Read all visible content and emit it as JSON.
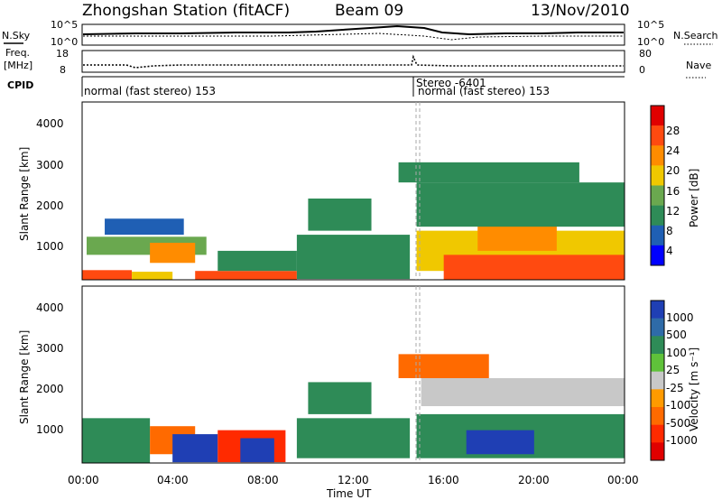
{
  "header": {
    "station": "Zhongshan Station (fitACF)",
    "beam": "Beam 09",
    "date": "13/Nov/2010"
  },
  "strip": {
    "nsky_label": "N.Sky",
    "nsky_ticks": [
      "10^5",
      "10^0"
    ],
    "nsearch_label": "N.Search",
    "nsearch_ticks": [
      "10^5",
      "10^0"
    ],
    "freq_label_1": "Freq.",
    "freq_label_2": "[MHz]",
    "freq_ticks": [
      "18",
      "8"
    ],
    "nave_label": "Nave",
    "nave_ticks": [
      "80",
      "0"
    ],
    "cpid_label": "CPID",
    "cpid_segments": [
      {
        "label": "normal (fast stereo) 153",
        "start_hour": 0.0
      },
      {
        "label": "Stereo -6401",
        "start_hour": 14.8
      },
      {
        "label": "normal (fast stereo) 153",
        "start_hour": 14.8
      }
    ]
  },
  "axes": {
    "ylabel": "Slant Range [km]",
    "xlabel": "Time UT",
    "yticks": [
      "4000",
      "3000",
      "2000",
      "1000"
    ],
    "xticks": [
      "00:00",
      "04:00",
      "08:00",
      "12:00",
      "16:00",
      "20:00",
      "00:00"
    ]
  },
  "power_scale": {
    "title": "Power [dB]",
    "labels": [
      "28",
      "24",
      "20",
      "16",
      "12",
      "8",
      "4"
    ],
    "colors": [
      "#e00000",
      "#ff4a10",
      "#ff8c00",
      "#f0c800",
      "#6aa84f",
      "#2e8b57",
      "#1f5fb4",
      "#0000ff"
    ]
  },
  "velocity_scale": {
    "title": "Velocity [m s⁻¹]",
    "labels": [
      "1000",
      "500",
      "100",
      "25",
      "-25",
      "-100",
      "-500",
      "-1000"
    ],
    "colors": [
      "#1f3fb4",
      "#2e6ba8",
      "#2e8b57",
      "#5fc23a",
      "#c8c8c8",
      "#ff9a00",
      "#ff6a00",
      "#ff2a00",
      "#e00000"
    ]
  },
  "chart_data": [
    {
      "type": "heatmap",
      "title": "Power [dB]",
      "xlabel": "Time UT",
      "ylabel": "Slant Range [km]",
      "xlim": [
        0,
        24
      ],
      "ylim": [
        180,
        4600
      ],
      "scale_range": [
        0,
        32
      ],
      "regions": [
        {
          "t0": 0.0,
          "t1": 2.2,
          "r0": 180,
          "r1": 420,
          "level": 26
        },
        {
          "t0": 2.2,
          "t1": 4.0,
          "r0": 180,
          "r1": 380,
          "level": 20
        },
        {
          "t0": 0.2,
          "t1": 5.5,
          "r0": 800,
          "r1": 1250,
          "level": 16
        },
        {
          "t0": 3.0,
          "t1": 5.0,
          "r0": 600,
          "r1": 1100,
          "level": 24
        },
        {
          "t0": 5.0,
          "t1": 9.5,
          "r0": 180,
          "r1": 400,
          "level": 26
        },
        {
          "t0": 6.0,
          "t1": 9.5,
          "r0": 400,
          "r1": 900,
          "level": 10
        },
        {
          "t0": 1.0,
          "t1": 4.5,
          "r0": 1300,
          "r1": 1700,
          "level": 6
        },
        {
          "t0": 10.0,
          "t1": 12.8,
          "r0": 1400,
          "r1": 2200,
          "level": 7
        },
        {
          "t0": 9.5,
          "t1": 14.5,
          "r0": 200,
          "r1": 1300,
          "level": 7
        },
        {
          "t0": 14.8,
          "t1": 24.0,
          "r0": 400,
          "r1": 1400,
          "level": 20
        },
        {
          "t0": 16.0,
          "t1": 24.0,
          "r0": 180,
          "r1": 800,
          "level": 26
        },
        {
          "t0": 17.5,
          "t1": 21.0,
          "r0": 900,
          "r1": 1600,
          "level": 24
        },
        {
          "t0": 14.8,
          "t1": 24.0,
          "r0": 1500,
          "r1": 2600,
          "level": 9
        },
        {
          "t0": 14.0,
          "t1": 22.0,
          "r0": 2600,
          "r1": 3100,
          "level": 7
        }
      ]
    },
    {
      "type": "heatmap",
      "title": "Velocity [m s⁻¹]",
      "xlabel": "Time UT",
      "ylabel": "Slant Range [km]",
      "xlim": [
        0,
        24
      ],
      "ylim": [
        180,
        4600
      ],
      "regions": [
        {
          "t0": 0.0,
          "t1": 3.0,
          "r0": 180,
          "r1": 1300,
          "level": 100
        },
        {
          "t0": 3.0,
          "t1": 5.0,
          "r0": 400,
          "r1": 1100,
          "level": -100
        },
        {
          "t0": 4.0,
          "t1": 6.0,
          "r0": 200,
          "r1": 900,
          "level": 1000
        },
        {
          "t0": 6.0,
          "t1": 9.0,
          "r0": 200,
          "r1": 1000,
          "level": -500
        },
        {
          "t0": 7.0,
          "t1": 8.5,
          "r0": 200,
          "r1": 800,
          "level": 1000
        },
        {
          "t0": 9.5,
          "t1": 14.5,
          "r0": 300,
          "r1": 1300,
          "level": 100
        },
        {
          "t0": 10.0,
          "t1": 12.8,
          "r0": 1400,
          "r1": 2200,
          "level": 100
        },
        {
          "t0": 14.8,
          "t1": 24.0,
          "r0": 300,
          "r1": 1400,
          "level": 100
        },
        {
          "t0": 17.0,
          "t1": 20.0,
          "r0": 400,
          "r1": 1000,
          "level": 1000
        },
        {
          "t0": 15.0,
          "t1": 24.0,
          "r0": 1600,
          "r1": 2300,
          "level": 0
        },
        {
          "t0": 14.0,
          "t1": 18.0,
          "r0": 2300,
          "r1": 2900,
          "level": -100
        }
      ]
    }
  ]
}
